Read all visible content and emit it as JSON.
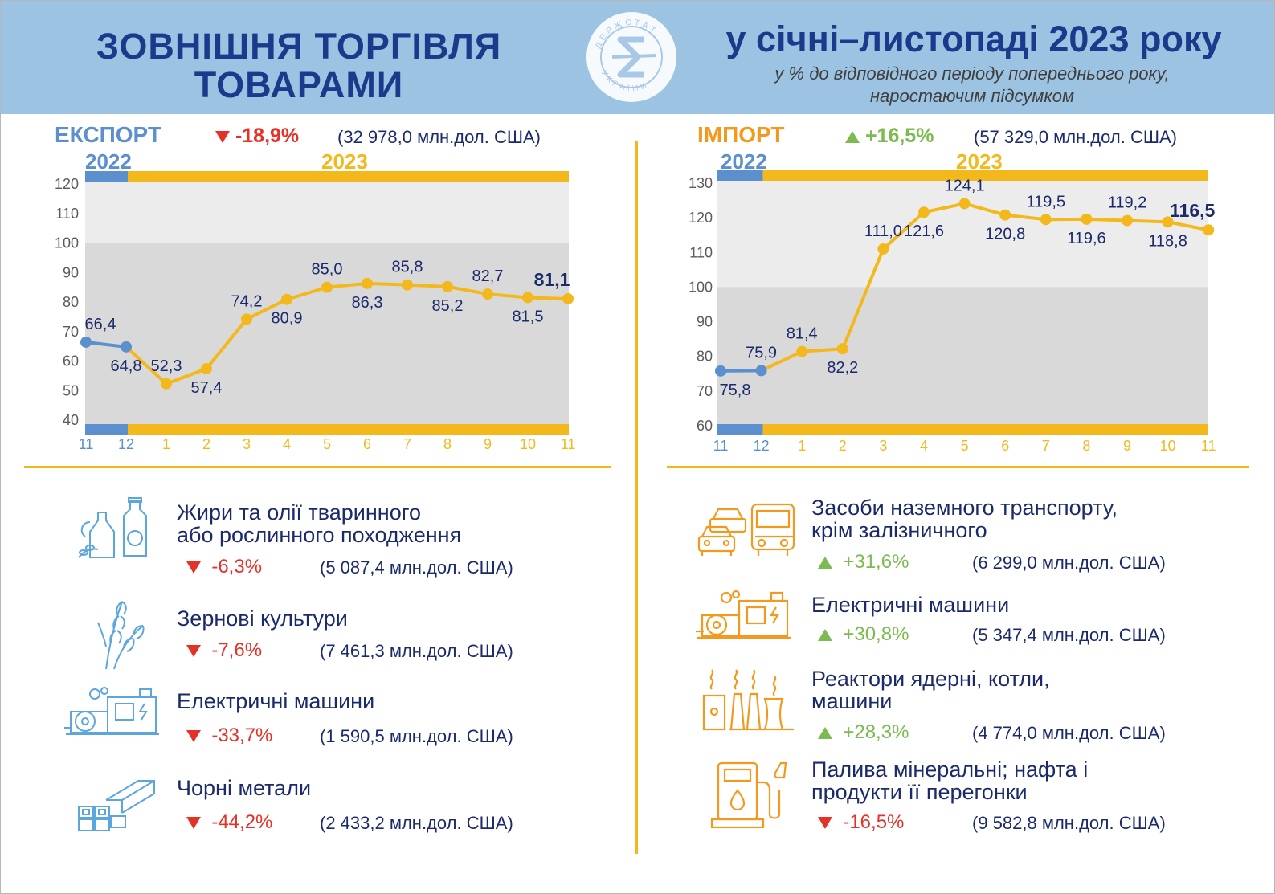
{
  "header": {
    "title_line1": "ЗОВНІШНЯ ТОРГІВЛЯ",
    "title_line2": "ТОВАРАМИ",
    "period_title": "у січні–листопаді 2023 року",
    "subtitle_line1": "у % до відповідного періоду попереднього року,",
    "subtitle_line2": "наростаючим підсумком",
    "logo_text": "ДЕРЖСТАТ УКРАЇНИ"
  },
  "colors": {
    "blue_2022": "#5b8fce",
    "yellow_2023": "#f2b81c",
    "navy": "#1b2a6b",
    "red": "#e53228",
    "green": "#7cbb51",
    "orange": "#f39a1e",
    "light_blue": "#5ba6dc"
  },
  "export": {
    "title": "ЕКСПОРТ",
    "change": "-18,9%",
    "total": "(32 978,0 млн.дол. США)",
    "year_2022": "2022",
    "year_2023": "2023"
  },
  "import": {
    "title": "ІМПОРТ",
    "change": "+16,5%",
    "total": "(57 329,0 млн.дол. США)",
    "year_2022": "2022",
    "year_2023": "2023"
  },
  "chart_data": [
    {
      "type": "line",
      "x": [
        "11",
        "12",
        "1",
        "2",
        "3",
        "4",
        "5",
        "6",
        "7",
        "8",
        "9",
        "10",
        "11"
      ],
      "values": [
        66.4,
        64.8,
        52.3,
        57.4,
        74.2,
        80.9,
        85.0,
        86.3,
        85.8,
        85.2,
        82.7,
        81.5,
        81.1
      ],
      "labels": [
        "66,4",
        "64,8",
        "52,3",
        "57,4",
        "74,2",
        "80,9",
        "85,0",
        "86,3",
        "85,8",
        "85,2",
        "82,7",
        "81,5",
        "81,1"
      ],
      "label_side": [
        "above",
        "below",
        "above",
        "below",
        "above",
        "below",
        "above",
        "below",
        "above",
        "below",
        "above",
        "below",
        "above"
      ],
      "ylim": [
        40,
        120
      ],
      "yticks": [
        "40",
        "50",
        "60",
        "70",
        "80",
        "90",
        "100",
        "110",
        "120"
      ],
      "ytick_values": [
        40,
        50,
        60,
        70,
        80,
        90,
        100,
        110,
        120
      ],
      "band_grey_from": 40,
      "band_grey_to": 100,
      "series_split_index": 1,
      "grid": false
    },
    {
      "type": "line",
      "x": [
        "11",
        "12",
        "1",
        "2",
        "3",
        "4",
        "5",
        "6",
        "7",
        "8",
        "9",
        "10",
        "11"
      ],
      "values": [
        75.8,
        75.9,
        81.4,
        82.2,
        111.0,
        121.6,
        124.1,
        120.8,
        119.5,
        119.6,
        119.2,
        118.8,
        116.5
      ],
      "labels": [
        "75,8",
        "75,9",
        "81,4",
        "82,2",
        "111,0",
        "121,6",
        "124,1",
        "120,8",
        "119,5",
        "119,6",
        "119,2",
        "118,8",
        "116,5"
      ],
      "label_side": [
        "below",
        "above",
        "above",
        "below",
        "above",
        "below",
        "above",
        "below",
        "above",
        "below",
        "above",
        "below",
        "above"
      ],
      "ylim": [
        60,
        130
      ],
      "yticks": [
        "60",
        "70",
        "80",
        "90",
        "100",
        "110",
        "120",
        "130"
      ],
      "ytick_values": [
        60,
        70,
        80,
        90,
        100,
        110,
        120,
        130
      ],
      "band_grey_from": 60,
      "band_grey_to": 100,
      "series_split_index": 1,
      "grid": false
    }
  ],
  "export_products": [
    {
      "title_line1": "Жири та олії тваринного",
      "title_line2": "або рослинного походження",
      "change": "-6,3%",
      "value": "(5 087,4 млн.дол. США)",
      "icon": "oil-bottles-icon",
      "direction": "down"
    },
    {
      "title_line1": "Зернові культури",
      "title_line2": "",
      "change": "-7,6%",
      "value": "(7 461,3 млн.дол. США)",
      "icon": "wheat-icon",
      "direction": "down"
    },
    {
      "title_line1": "Електричні машини",
      "title_line2": "",
      "change": "-33,7%",
      "value": "(1 590,5 млн.дол. США)",
      "icon": "electric-machine-icon",
      "direction": "down"
    },
    {
      "title_line1": "Чорні метали",
      "title_line2": "",
      "change": "-44,2%",
      "value": "(2 433,2 млн.дол. США)",
      "icon": "metal-beams-icon",
      "direction": "down"
    }
  ],
  "import_products": [
    {
      "title_line1": "Засоби наземного транспорту,",
      "title_line2": "крім залізничного",
      "change": "+31,6%",
      "value": "(6 299,0 млн.дол. США)",
      "icon": "vehicles-icon",
      "direction": "up"
    },
    {
      "title_line1": "Електричні машини",
      "title_line2": "",
      "change": "+30,8%",
      "value": "(5 347,4 млн.дол. США)",
      "icon": "electric-machine-icon",
      "direction": "up"
    },
    {
      "title_line1": "Реактори ядерні, котли,",
      "title_line2": "машини",
      "change": "+28,3%",
      "value": "(4 774,0 млн.дол. США)",
      "icon": "power-plant-icon",
      "direction": "up"
    },
    {
      "title_line1": "Палива мінеральні; нафта і",
      "title_line2": "продукти її перегонки",
      "change": "-16,5%",
      "value": "(9 582,8 млн.дол. США)",
      "icon": "fuel-pump-icon",
      "direction": "down"
    }
  ]
}
